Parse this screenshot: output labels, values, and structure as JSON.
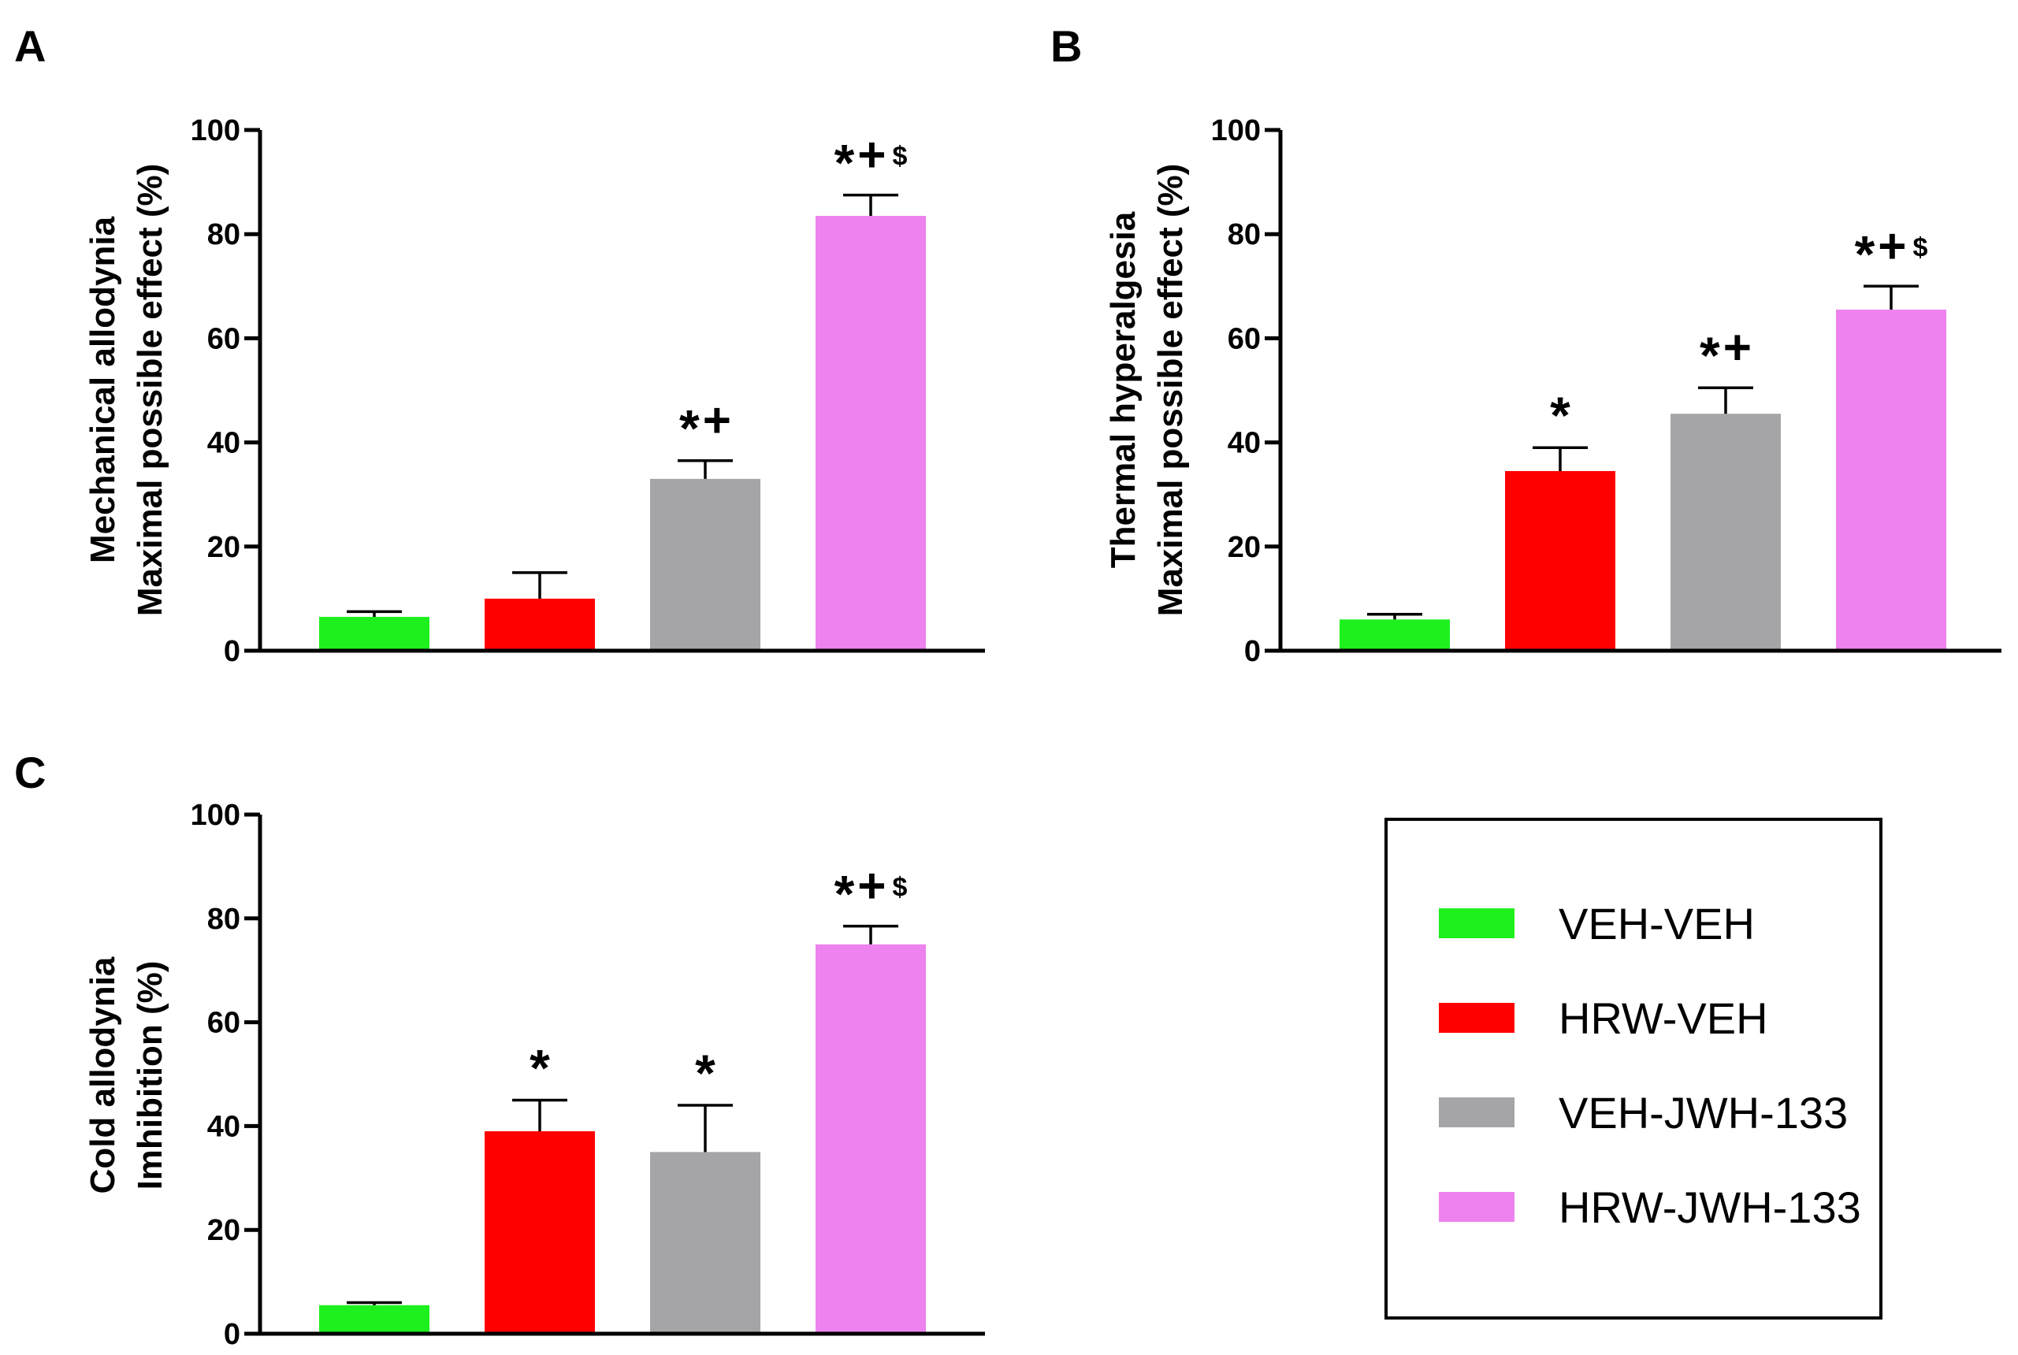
{
  "colors": {
    "VEH-VEH": "#1ef01e",
    "HRW-VEH": "#ff0000",
    "VEH-JWH-133": "#a5a5a8",
    "HRW-JWH-133": "#ee82ee"
  },
  "chart_data": [
    {
      "type": "bar",
      "panel": "A",
      "ylabel_lines": [
        "Mechanical allodynia",
        "Maximal possible effect (%)"
      ],
      "categories": [
        "VEH-VEH",
        "HRW-VEH",
        "VEH-JWH-133",
        "HRW-JWH-133"
      ],
      "values": [
        6.5,
        10,
        33,
        83.5
      ],
      "errors": [
        1,
        5,
        3.5,
        4
      ],
      "significance": [
        "",
        "",
        "*+",
        "*+$"
      ],
      "ylim": [
        0,
        100
      ],
      "yticks": [
        "0",
        "20",
        "40",
        "60",
        "80",
        "100"
      ]
    },
    {
      "type": "bar",
      "panel": "B",
      "ylabel_lines": [
        "Thermal hyperalgesia",
        "Maximal possible effect (%)"
      ],
      "categories": [
        "VEH-VEH",
        "HRW-VEH",
        "VEH-JWH-133",
        "HRW-JWH-133"
      ],
      "values": [
        6,
        34.5,
        45.5,
        65.5
      ],
      "errors": [
        1,
        4.5,
        5,
        4.5
      ],
      "significance": [
        "",
        "*",
        "*+",
        "*+$"
      ],
      "ylim": [
        0,
        100
      ],
      "yticks": [
        "0",
        "20",
        "40",
        "60",
        "80",
        "100"
      ]
    },
    {
      "type": "bar",
      "panel": "C",
      "ylabel_lines": [
        "Cold allodynia",
        "Imhibition (%)"
      ],
      "categories": [
        "VEH-VEH",
        "HRW-VEH",
        "VEH-JWH-133",
        "HRW-JWH-133"
      ],
      "values": [
        5.5,
        39,
        35,
        75
      ],
      "errors": [
        0.5,
        6,
        9,
        3.5
      ],
      "significance": [
        "",
        "*",
        "*",
        "*+$"
      ],
      "ylim": [
        0,
        100
      ],
      "yticks": [
        "0",
        "20",
        "40",
        "60",
        "80",
        "100"
      ]
    }
  ],
  "legend": {
    "entries": [
      "VEH-VEH",
      "HRW-VEH",
      "VEH-JWH-133",
      "HRW-JWH-133"
    ]
  }
}
